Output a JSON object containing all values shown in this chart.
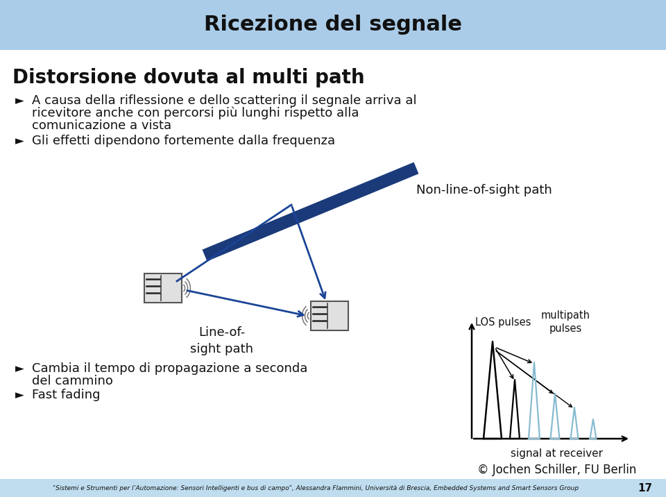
{
  "title": "Ricezione del segnale",
  "title_bg": "#aacce8",
  "slide_bg": "#ffffff",
  "heading": "Distorsione dovuta al multi path",
  "footer": "\"Sistemi e Strumenti per l’Automazione: Sensori Intelligenti e bus di campo\", Alessandra Flammini, Università di Brescia, Embedded Systems and Smart Sensors Group",
  "footer_bg": "#c0ddf0",
  "page_num": "17",
  "dark_blue": "#1a3a7a",
  "medium_blue": "#1a4496",
  "light_pulse": "#88bbd0",
  "black": "#111111",
  "bullet": "➔",
  "b1_line1": "A causa della riflessione e dello scattering il segnale arriva al",
  "b1_line2": "ricevitore anche con percorsi più lunghi rispetto alla",
  "b1_line3": "comunicazione a vista",
  "b2": "Gli effetti dipendono fortemente dalla frequenza",
  "los_label": "Line-of-\nsight path",
  "nlos_label": "Non-line-of-sight path",
  "los_pulses_label": "LOS pulses",
  "multipath_pulses_label": "multipath\npulses",
  "signal_label": "signal at receiver",
  "copyright": "© Jochen Schiller, FU Berlin",
  "b3_line1": "Cambia il tempo di propagazione a seconda",
  "b3_line2": "del cammino",
  "b4": "Fast fading"
}
